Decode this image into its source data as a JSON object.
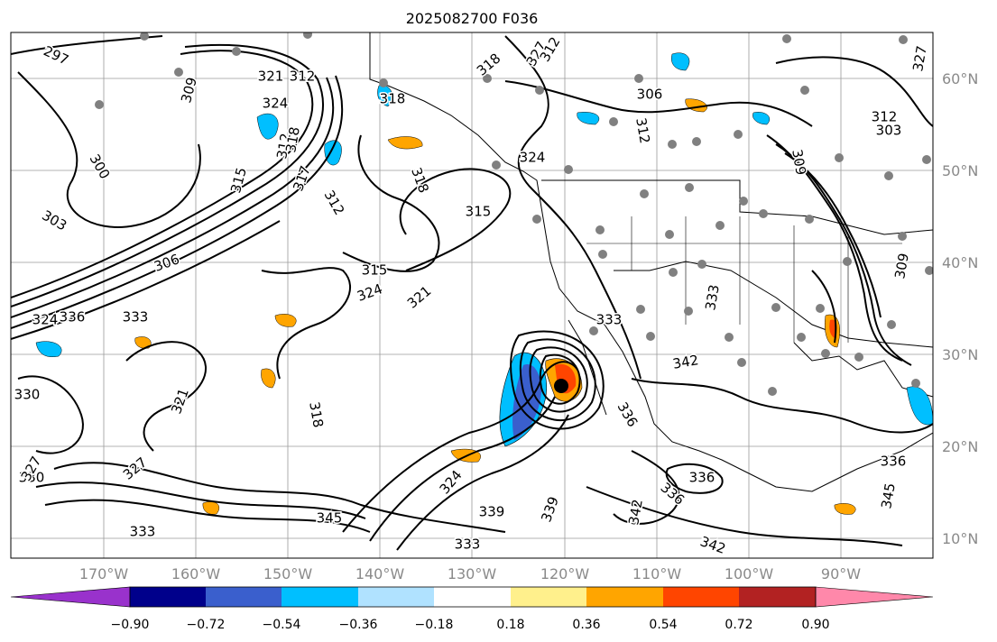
{
  "title": "2025082700 F036",
  "map": {
    "lon_labels": [
      "170°W",
      "160°W",
      "150°W",
      "140°W",
      "130°W",
      "120°W",
      "110°W",
      "100°W",
      "90°W"
    ],
    "lat_labels": [
      "60°N",
      "50°N",
      "40°N",
      "30°N",
      "20°N",
      "10°N"
    ],
    "contour_labels": [
      "297",
      "309",
      "321",
      "324",
      "312",
      "312",
      "318",
      "327",
      "318",
      "324",
      "318",
      "312",
      "306",
      "303",
      "300",
      "315",
      "317",
      "318",
      "315",
      "324",
      "321",
      "315",
      "306",
      "312",
      "330",
      "336",
      "333",
      "324",
      "327",
      "309",
      "321",
      "318",
      "333",
      "339",
      "336",
      "312",
      "327",
      "330",
      "324",
      "327",
      "345",
      "339",
      "333",
      "333",
      "336",
      "342",
      "342",
      "309",
      "303",
      "312",
      "333",
      "336",
      "336",
      "345",
      "342"
    ]
  },
  "colorbar": {
    "tick_labels": [
      "−0.90",
      "−0.72",
      "−0.54",
      "−0.36",
      "−0.18",
      "0.18",
      "0.36",
      "0.54",
      "0.72",
      "0.90"
    ],
    "colors": [
      "#9932cc",
      "#00008b",
      "#3a5fcd",
      "#00bfff",
      "#b0e2ff",
      "#ffffff",
      "#fff08c",
      "#ffa500",
      "#ff4500",
      "#b22222",
      "#ff88aa"
    ]
  }
}
